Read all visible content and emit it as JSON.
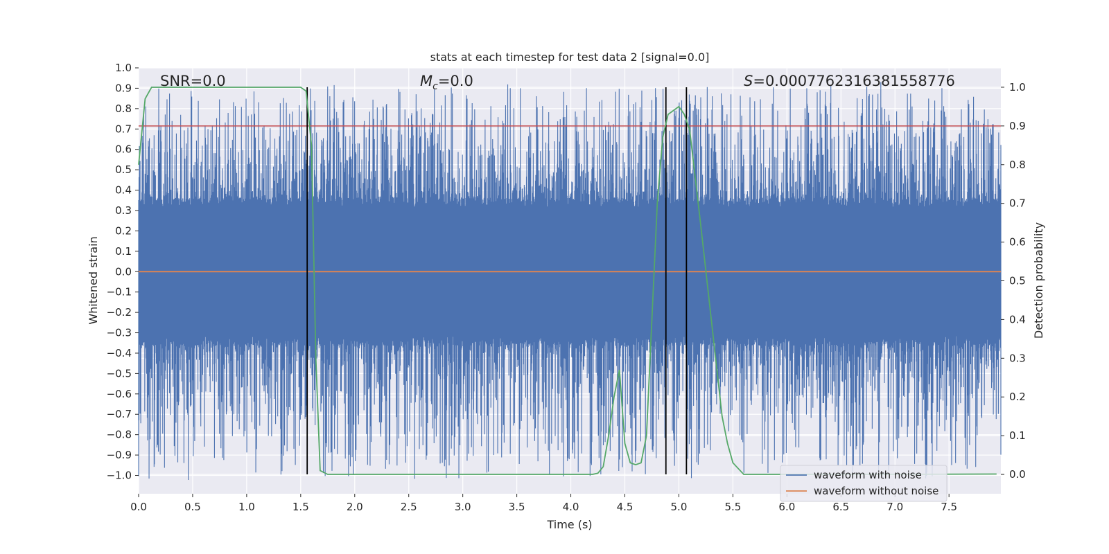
{
  "chart_data": {
    "type": "line",
    "title": "stats at each timestep for test data 2 [signal=0.0]",
    "xlabel": "Time (s)",
    "ylabel": "Whitened strain",
    "y2label": "Detection probability",
    "xlim": [
      0.0,
      7.98
    ],
    "ylim": [
      -1.09,
      1.0
    ],
    "y2lim": [
      -0.05,
      1.05
    ],
    "xticks": [
      "0.0",
      "0.5",
      "1.0",
      "1.5",
      "2.0",
      "2.5",
      "3.0",
      "3.5",
      "4.0",
      "4.5",
      "5.0",
      "5.5",
      "6.0",
      "6.5",
      "7.0",
      "7.5"
    ],
    "yticks": [
      "1.0",
      "0.9",
      "0.8",
      "0.7",
      "0.6",
      "0.5",
      "0.4",
      "0.3",
      "0.2",
      "0.1",
      "0.0",
      "−0.1",
      "−0.2",
      "−0.3",
      "−0.4",
      "−0.5",
      "−0.6",
      "−0.7",
      "−0.8",
      "−0.9",
      "−1.0"
    ],
    "y2ticks": [
      "0.0",
      "0.1",
      "0.2",
      "0.3",
      "0.4",
      "0.5",
      "0.6",
      "0.7",
      "0.8",
      "0.9",
      "1.0"
    ],
    "grid": true,
    "legend_position": "bottom-right",
    "annotations": {
      "snr": "SNR=0.0",
      "mc_symbol": "M",
      "mc_sub": "c",
      "mc_value": "=0.0",
      "s_symbol": "S",
      "s_value": "=0.0007762316381558776"
    },
    "colors": {
      "background": "#eaeaf2",
      "grid": "#ffffff",
      "noisy": "#4c72b0",
      "clean": "#dd8452",
      "probability": "#55a868",
      "threshold": "#c44e52",
      "markers": "#000000"
    },
    "series": [
      {
        "name": "waveform with noise",
        "kind": "noise",
        "amplitude_core": 0.33,
        "extreme_max": 0.9,
        "extreme_min": -1.0
      },
      {
        "name": "waveform without noise",
        "kind": "constant",
        "y": 0.0
      }
    ],
    "probability_curve": {
      "x": [
        0.0,
        0.06,
        0.12,
        0.5,
        1.0,
        1.5,
        1.55,
        1.6,
        1.64,
        1.68,
        1.75,
        2.0,
        3.0,
        4.0,
        4.2,
        4.25,
        4.3,
        4.35,
        4.4,
        4.45,
        4.5,
        4.55,
        4.6,
        4.65,
        4.7,
        4.75,
        4.8,
        4.85,
        4.9,
        4.95,
        5.0,
        5.05,
        5.1,
        5.2,
        5.3,
        5.4,
        5.45,
        5.5,
        5.55,
        5.6,
        6.0,
        7.0,
        7.94
      ],
      "y": [
        0.8,
        0.97,
        1.0,
        1.0,
        1.0,
        1.0,
        0.99,
        0.85,
        0.3,
        0.01,
        0.0,
        0.0,
        0.0,
        0.0,
        0.0,
        0.003,
        0.02,
        0.1,
        0.2,
        0.27,
        0.08,
        0.03,
        0.025,
        0.03,
        0.1,
        0.4,
        0.7,
        0.87,
        0.93,
        0.94,
        0.95,
        0.93,
        0.89,
        0.65,
        0.4,
        0.15,
        0.08,
        0.03,
        0.015,
        0.0,
        0.0,
        0.0,
        0.001
      ]
    },
    "threshold_y2": 0.9,
    "vertical_markers_x": [
      1.56,
      4.88,
      5.07
    ]
  }
}
